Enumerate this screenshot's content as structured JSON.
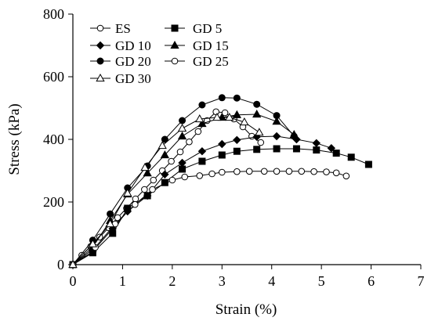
{
  "chart_data": {
    "type": "line",
    "xlabel": "Strain (%)",
    "ylabel": "Stress (kPa)",
    "xlim": [
      0,
      7
    ],
    "ylim": [
      0,
      800
    ],
    "xticks": [
      "0",
      "1",
      "2",
      "3",
      "4",
      "5",
      "6",
      "7"
    ],
    "yticks": [
      "0",
      "200",
      "400",
      "600",
      "800"
    ],
    "grid": false,
    "legend_position": "top-left",
    "series": [
      {
        "name": "ES",
        "marker": "circle-open",
        "x": [
          0,
          0.18,
          0.36,
          0.54,
          0.72,
          0.9,
          1.08,
          1.26,
          1.44,
          1.62,
          1.8,
          1.98,
          2.16,
          2.34,
          2.52,
          2.7,
          2.88,
          3.06,
          3.24,
          3.42,
          3.6,
          3.78
        ],
        "y": [
          0,
          30,
          58,
          88,
          118,
          150,
          180,
          210,
          240,
          270,
          300,
          330,
          360,
          392,
          425,
          460,
          488,
          485,
          465,
          440,
          410,
          390
        ]
      },
      {
        "name": "GD 5",
        "marker": "square-filled",
        "x": [
          0,
          0.4,
          0.8,
          1.1,
          1.5,
          1.85,
          2.2,
          2.6,
          3.0,
          3.3,
          3.7,
          4.1,
          4.5,
          4.9,
          5.3,
          5.6,
          5.95
        ],
        "y": [
          0,
          38,
          100,
          180,
          220,
          262,
          305,
          330,
          350,
          362,
          368,
          370,
          370,
          366,
          356,
          343,
          320
        ]
      },
      {
        "name": "GD 10",
        "marker": "diamond-filled",
        "x": [
          0,
          0.4,
          0.8,
          1.1,
          1.5,
          1.85,
          2.2,
          2.6,
          3.0,
          3.3,
          3.7,
          4.1,
          4.5,
          4.9,
          5.2
        ],
        "y": [
          0,
          42,
          115,
          170,
          220,
          288,
          325,
          362,
          385,
          398,
          408,
          410,
          400,
          388,
          372
        ]
      },
      {
        "name": "GD 15",
        "marker": "triangle-filled",
        "x": [
          0,
          0.4,
          0.75,
          1.1,
          1.5,
          1.85,
          2.2,
          2.6,
          3.0,
          3.3,
          3.7,
          4.1,
          4.45
        ],
        "y": [
          0,
          56,
          140,
          225,
          292,
          350,
          410,
          450,
          470,
          478,
          480,
          457,
          415
        ]
      },
      {
        "name": "GD 20",
        "marker": "circle-filled",
        "x": [
          0,
          0.4,
          0.75,
          1.1,
          1.5,
          1.85,
          2.2,
          2.6,
          3.0,
          3.3,
          3.7,
          4.1,
          4.45
        ],
        "y": [
          0,
          78,
          162,
          245,
          315,
          400,
          460,
          510,
          533,
          532,
          512,
          476,
          410
        ]
      },
      {
        "name": "GD 25",
        "marker": "circle-open",
        "x": [
          0,
          0.45,
          0.85,
          1.25,
          1.6,
          2.0,
          2.25,
          2.55,
          2.8,
          3.0,
          3.3,
          3.55,
          3.85,
          4.1,
          4.35,
          4.6,
          4.85,
          5.1,
          5.3,
          5.5
        ],
        "y": [
          0,
          55,
          130,
          192,
          240,
          270,
          280,
          284,
          290,
          295,
          297,
          298,
          298,
          298,
          298,
          298,
          297,
          296,
          293,
          283
        ]
      },
      {
        "name": "GD 30",
        "marker": "triangle-open",
        "x": [
          0,
          0.4,
          0.75,
          1.1,
          1.45,
          1.8,
          2.2,
          2.55,
          2.9,
          3.15,
          3.45,
          3.75
        ],
        "y": [
          0,
          66,
          130,
          228,
          310,
          380,
          435,
          465,
          470,
          470,
          455,
          422
        ]
      }
    ]
  }
}
